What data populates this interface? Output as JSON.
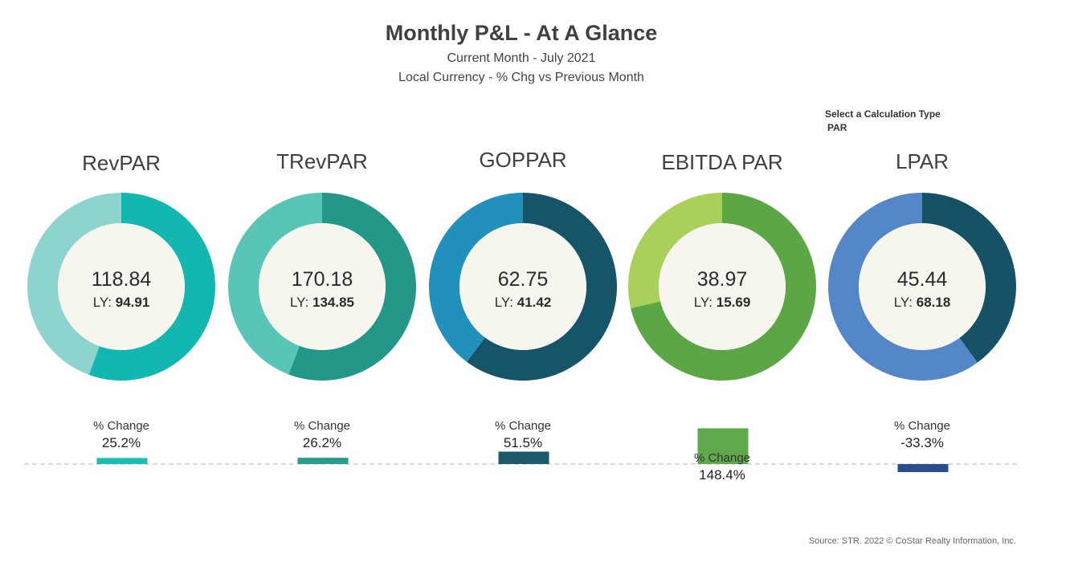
{
  "header": {
    "title": "Monthly P&L - At A Glance",
    "subtitle_1": "Current Month - July 2021",
    "subtitle_2": "Local Currency - % Chg vs Previous Month"
  },
  "calculation_selector": {
    "label": "Select a Calculation Type",
    "value": "PAR"
  },
  "chart_data": {
    "type": "donut-and-bar",
    "metrics": [
      {
        "name": "RevPAR",
        "current": 118.84,
        "current_label": "118.84",
        "ly": 94.91,
        "ly_prefix": "LY:",
        "ly_label": "94.91",
        "current_share": 0.556,
        "color_current": "#12B8B0",
        "color_ly": "#8DD4CF",
        "pct_change": 25.2,
        "change_caption": "% Change",
        "change_label": "25.2%",
        "bar_color": "#1BBDB3"
      },
      {
        "name": "TRevPAR",
        "current": 170.18,
        "current_label": "170.18",
        "ly": 134.85,
        "ly_prefix": "LY:",
        "ly_label": "134.85",
        "current_share": 0.558,
        "color_current": "#239889",
        "color_ly": "#59C5B7",
        "pct_change": 26.2,
        "change_caption": "% Change",
        "change_label": "26.2%",
        "bar_color": "#2A9C8D"
      },
      {
        "name": "GOPPAR",
        "current": 62.75,
        "current_label": "62.75",
        "ly": 41.42,
        "ly_prefix": "LY:",
        "ly_label": "41.42",
        "current_share": 0.602,
        "color_current": "#165469",
        "color_ly": "#2190BA",
        "pct_change": 51.5,
        "change_caption": "% Change",
        "change_label": "51.5%",
        "bar_color": "#1B5A6B"
      },
      {
        "name": "EBITDA PAR",
        "current": 38.97,
        "current_label": "38.97",
        "ly": 15.69,
        "ly_prefix": "LY:",
        "ly_label": "15.69",
        "current_share": 0.713,
        "color_current": "#5BA645",
        "color_ly": "#A9D05A",
        "pct_change": 148.4,
        "change_caption": "% Change",
        "change_label": "148.4%",
        "bar_color": "#5FA84B"
      },
      {
        "name": "LPAR",
        "current": 45.44,
        "current_label": "45.44",
        "ly": 68.18,
        "ly_prefix": "LY:",
        "ly_label": "68.18",
        "current_share": 0.4,
        "color_current": "#155265",
        "color_ly": "#5387C8",
        "pct_change": -33.3,
        "change_caption": "% Change",
        "change_label": "-33.3%",
        "bar_color": "#284F8A"
      }
    ],
    "center_fill": "#F6F6EE",
    "baseline_color": "#D0D0D0"
  },
  "source": "Source: STR. 2022 © CoStar Realty Information, Inc."
}
